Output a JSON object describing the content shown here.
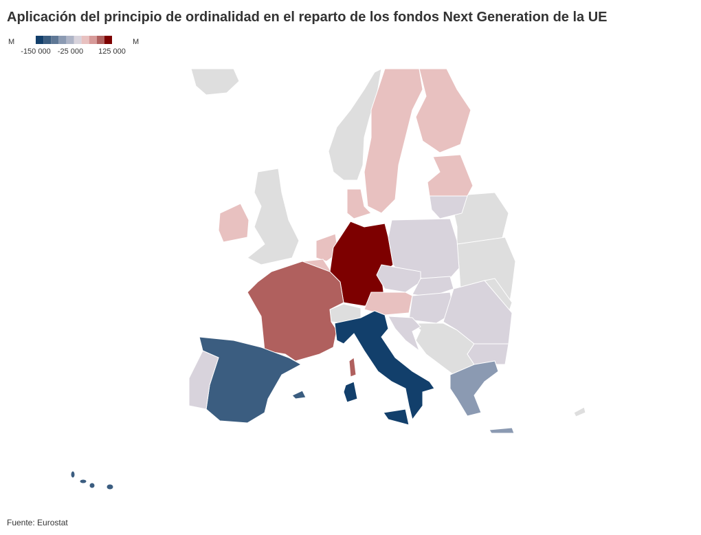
{
  "title": "Aplicación del principio de ordinalidad en el reparto de los fondos Next Generation de la UE",
  "legend": {
    "units": [
      "M",
      "M"
    ],
    "colors": [
      "#123f6b",
      "#3b5d80",
      "#5f7896",
      "#8b9ab2",
      "#aeb4c6",
      "#d8d3dc",
      "#e8c1c0",
      "#d79a99",
      "#b0605e",
      "#7d0000"
    ],
    "range": [
      -150000,
      125000
    ],
    "ticks": [
      {
        "value": -150000,
        "label": "-150 000"
      },
      {
        "value": -25000,
        "label": "-25 000"
      },
      {
        "value": 125000,
        "label": "125 000"
      }
    ]
  },
  "source": "Fuente: Eurostat"
}
